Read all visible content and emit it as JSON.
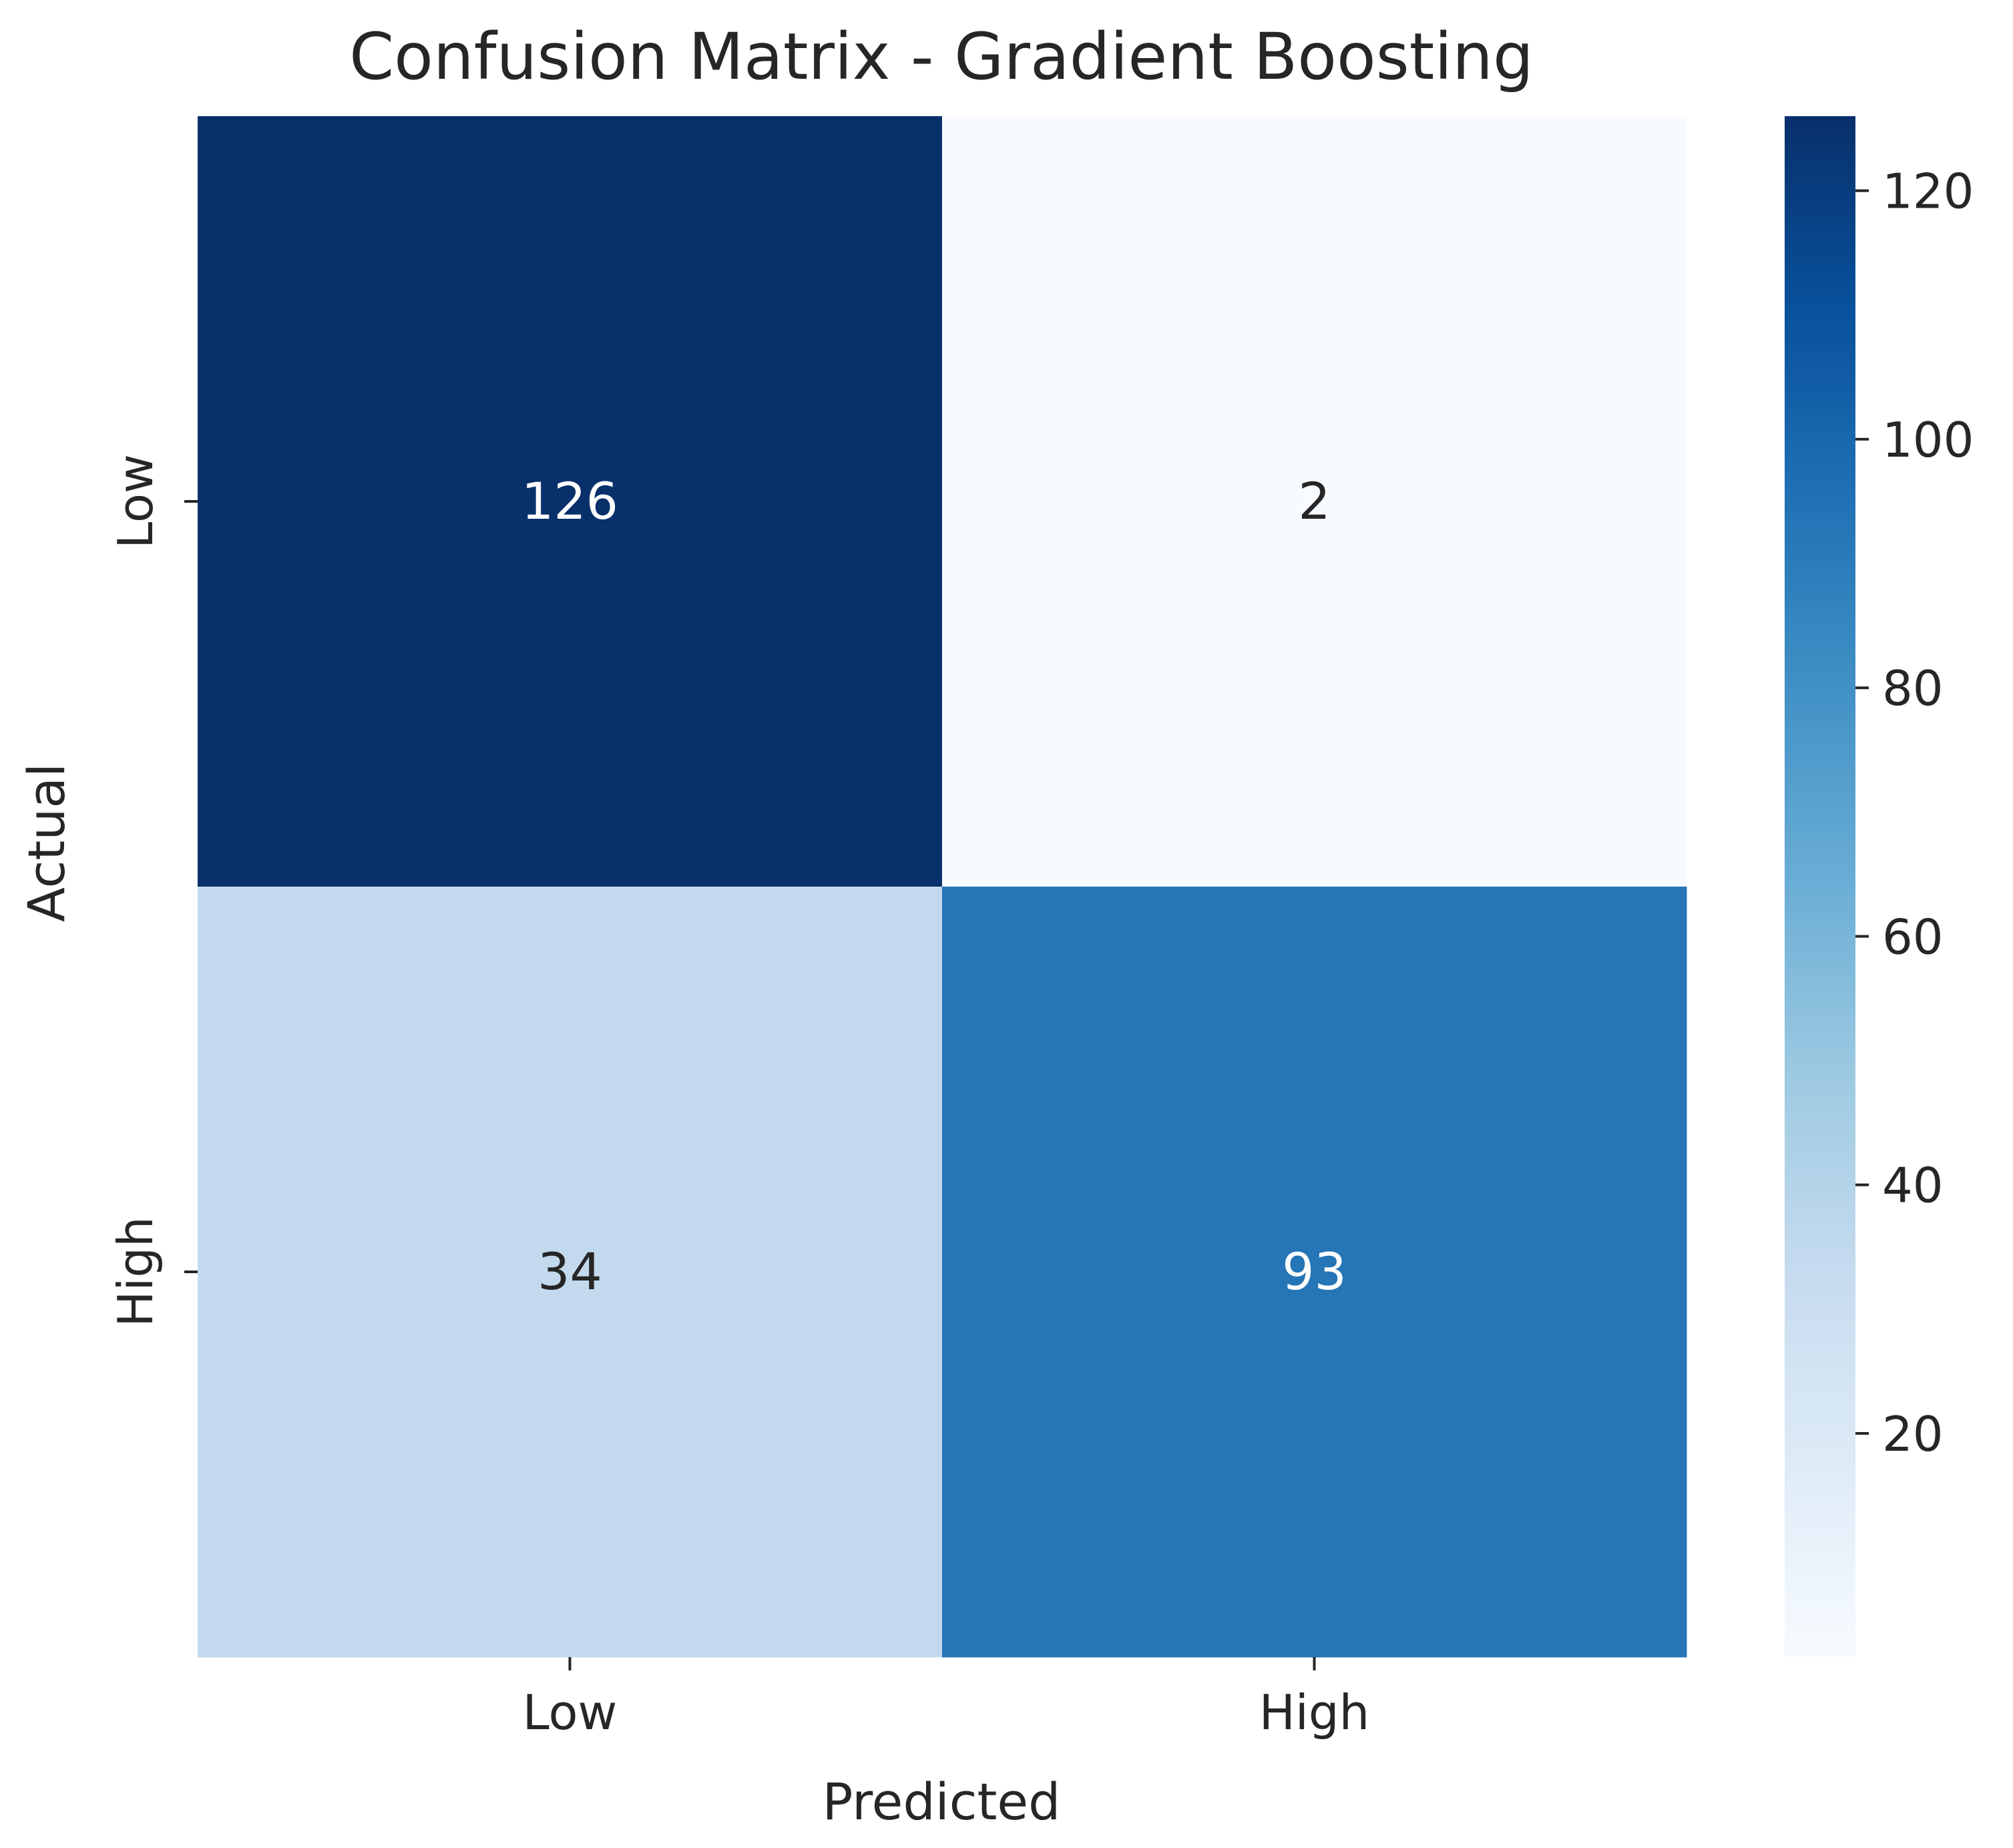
{
  "chart_data": {
    "type": "heatmap",
    "title": "Confusion Matrix - Gradient Boosting",
    "xlabel": "Predicted",
    "ylabel": "Actual",
    "x_categories": [
      "Low",
      "High"
    ],
    "y_categories": [
      "Low",
      "High"
    ],
    "values": [
      [
        126,
        2
      ],
      [
        34,
        93
      ]
    ],
    "colormap": "Blues",
    "colorbar": {
      "vmin": 2,
      "vmax": 126,
      "ticks": [
        20,
        40,
        60,
        80,
        100,
        120
      ],
      "tick_labels": [
        "20",
        "40",
        "60",
        "80",
        "100",
        "120"
      ]
    },
    "colors": {
      "dark_text": "#262626",
      "light_text": "#ffffff",
      "cmap_low": "#f7fbff",
      "cmap_high": "#08306b"
    },
    "grid": false
  }
}
